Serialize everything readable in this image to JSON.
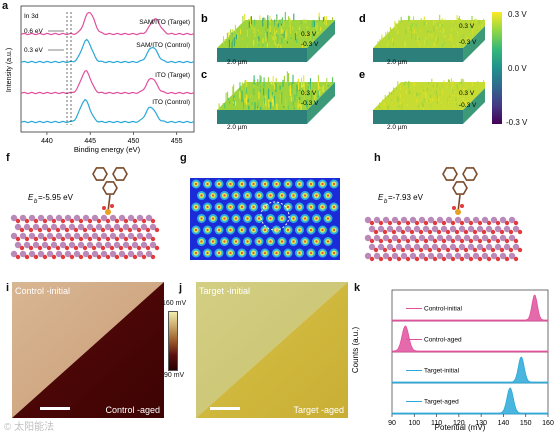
{
  "panels": {
    "a": "a",
    "b": "b",
    "c": "c",
    "d": "d",
    "e": "e",
    "f": "f",
    "g": "g",
    "h": "h",
    "i": "i",
    "j": "j",
    "k": "k"
  },
  "xps": {
    "ylabel": "Intensity (a.u.)",
    "xlabel": "Binding energy (eV)",
    "xticks": [
      "440",
      "445",
      "450",
      "455"
    ],
    "peak_label": "In 3d",
    "shift_target": "0.6 eV",
    "shift_control": "0.3 eV",
    "curves": [
      {
        "name": "SAM/ITO (Target)",
        "color": "#e0509c"
      },
      {
        "name": "SAM/ITO (Control)",
        "color": "#2aa8d8"
      },
      {
        "name": "ITO (Target)",
        "color": "#e0509c"
      },
      {
        "name": "ITO (Control)",
        "color": "#2aa8d8"
      }
    ]
  },
  "afm3d": {
    "scale_label": "2.0 µm",
    "z_top": "0.3 V",
    "z_bottom": "-0.3 V"
  },
  "colorbar_cpd": {
    "ticks": [
      "0.3 V",
      "0.0 V",
      "-0.3 V"
    ],
    "colors": [
      "#fde725",
      "#5ec962",
      "#21918c",
      "#3b528b",
      "#440154"
    ]
  },
  "dft": {
    "f_energy_label": "E",
    "f_energy_sub": "b",
    "f_energy_value": "=-5.95 eV",
    "h_energy_label": "E",
    "h_energy_sub": "b",
    "h_energy_value": "=-7.93 eV"
  },
  "kpfm": {
    "i_top": "Control -initial",
    "i_bottom": "Control -aged",
    "j_top": "Target -initial",
    "j_bottom": "Target -aged",
    "cbar_top": "160 mV",
    "cbar_bottom": "90 mV"
  },
  "chart_data": {
    "type": "area",
    "xlabel": "Potential (mV)",
    "ylabel": "Counts (a.u.)",
    "xlim": [
      90,
      160
    ],
    "xticks": [
      90,
      100,
      110,
      120,
      130,
      140,
      150,
      160
    ],
    "series": [
      {
        "name": "Control-initial",
        "color": "#e0509c",
        "center": 154,
        "width": 1.2
      },
      {
        "name": "Control-aged",
        "color": "#e0509c",
        "center": 96,
        "width": 1.5
      },
      {
        "name": "Target-initial",
        "color": "#2aa8d8",
        "center": 148,
        "width": 1.3
      },
      {
        "name": "Target-aged",
        "color": "#2aa8d8",
        "center": 143,
        "width": 1.4
      }
    ]
  },
  "watermark": "© 太阳能法"
}
